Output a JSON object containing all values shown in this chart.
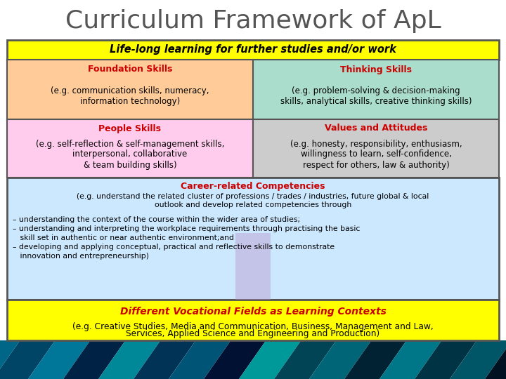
{
  "title": "Curriculum Framework of ApL",
  "title_color": "#555555",
  "title_fontsize": 26,
  "bg_color": "#ffffff",
  "lifelong_text": "Life-long learning for further studies and/or work",
  "lifelong_bg": "#ffff00",
  "lifelong_border": "#555555",
  "foundation_title": "Foundation Skills",
  "foundation_body": "(e.g. communication skills, numeracy,\ninformation technology)",
  "foundation_bg": "#ffcc99",
  "thinking_title": "Thinking Skills",
  "thinking_body": "(e.g. problem-solving & decision-making\nskills, analytical skills, creative thinking skills)",
  "thinking_bg": "#aaddcc",
  "people_title": "People Skills",
  "people_body": "(e.g. self-reflection & self-management skills,\ninterpersonal, collaborative\n& team building skills)",
  "people_bg": "#ffccee",
  "values_title": "Values and Attitudes",
  "values_body": "(e.g. honesty, responsibility, enthusiasm,\nwillingness to learn, self-confidence,\nrespect for others, law & authority)",
  "values_bg": "#cccccc",
  "career_title": "Career-related Competencies",
  "career_line1": "(e.g. understand the related cluster of professions / trades / industries, future global & local",
  "career_line2": "outlook and develop related competencies through",
  "career_line3": "– understanding the context of the course within the wider area of studies;",
  "career_line4": "– understanding and interpreting the workplace requirements through practising the basic",
  "career_line5": "   skill set in authentic or near authentic environment;and",
  "career_line6": "– developing and applying conceptual, practical and reflective skills to demonstrate",
  "career_line7": "   innovation and entrepreneurship)",
  "career_bg": "#cce8ff",
  "dvfl_title": "Different Vocational Fields as Learning Contexts",
  "dvfl_line1": "(e.g. Creative Studies, Media and Communication, Business, Management and Law,",
  "dvfl_line2": "Services, Applied Science and Engineering and Production)",
  "dvfl_bg": "#ffff00",
  "dvfl_border": "#555555",
  "skill_title_color": "#cc0000",
  "skill_body_color": "#000000",
  "border_color": "#555555",
  "arrow_fill": "#ece8d0",
  "purple_fill": "#bb99cc",
  "bottom_stripe_colors": [
    "#006688",
    "#004466",
    "#007799",
    "#002244",
    "#008899",
    "#003355",
    "#005577",
    "#001133",
    "#009999",
    "#004455",
    "#006677",
    "#002233",
    "#007788",
    "#003344",
    "#005566",
    "#001122",
    "#008888",
    "#003366",
    "#006699",
    "#004477"
  ]
}
